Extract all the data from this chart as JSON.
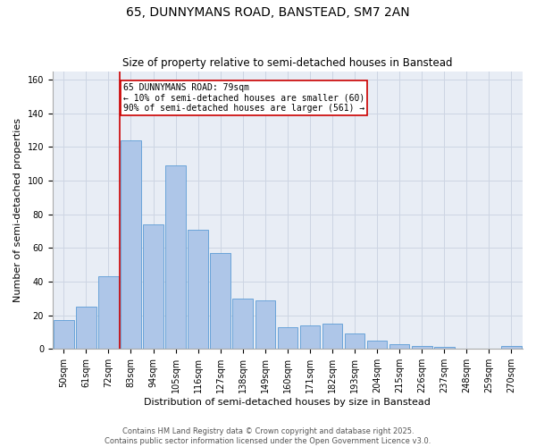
{
  "title": "65, DUNNYMANS ROAD, BANSTEAD, SM7 2AN",
  "subtitle": "Size of property relative to semi-detached houses in Banstead",
  "xlabel": "Distribution of semi-detached houses by size in Banstead",
  "ylabel": "Number of semi-detached properties",
  "categories": [
    "50sqm",
    "61sqm",
    "72sqm",
    "83sqm",
    "94sqm",
    "105sqm",
    "116sqm",
    "127sqm",
    "138sqm",
    "149sqm",
    "160sqm",
    "171sqm",
    "182sqm",
    "193sqm",
    "204sqm",
    "215sqm",
    "226sqm",
    "237sqm",
    "248sqm",
    "259sqm",
    "270sqm"
  ],
  "values": [
    17,
    25,
    43,
    124,
    74,
    109,
    71,
    57,
    30,
    29,
    13,
    14,
    15,
    9,
    5,
    3,
    2,
    1,
    0,
    0,
    2
  ],
  "bar_color": "#aec6e8",
  "bar_edge_color": "#5b9bd5",
  "red_line_bar_index": 3,
  "annotation_text": "65 DUNNYMANS ROAD: 79sqm\n← 10% of semi-detached houses are smaller (60)\n90% of semi-detached houses are larger (561) →",
  "annotation_box_color": "#ffffff",
  "annotation_box_edge": "#cc0000",
  "red_line_color": "#cc0000",
  "ylim": [
    0,
    165
  ],
  "yticks": [
    0,
    20,
    40,
    60,
    80,
    100,
    120,
    140,
    160
  ],
  "grid_color": "#cdd5e3",
  "background_color": "#e8edf5",
  "footer_text": "Contains HM Land Registry data © Crown copyright and database right 2025.\nContains public sector information licensed under the Open Government Licence v3.0.",
  "title_fontsize": 10,
  "subtitle_fontsize": 8.5,
  "xlabel_fontsize": 8,
  "ylabel_fontsize": 8,
  "tick_fontsize": 7,
  "annotation_fontsize": 7,
  "footer_fontsize": 6
}
